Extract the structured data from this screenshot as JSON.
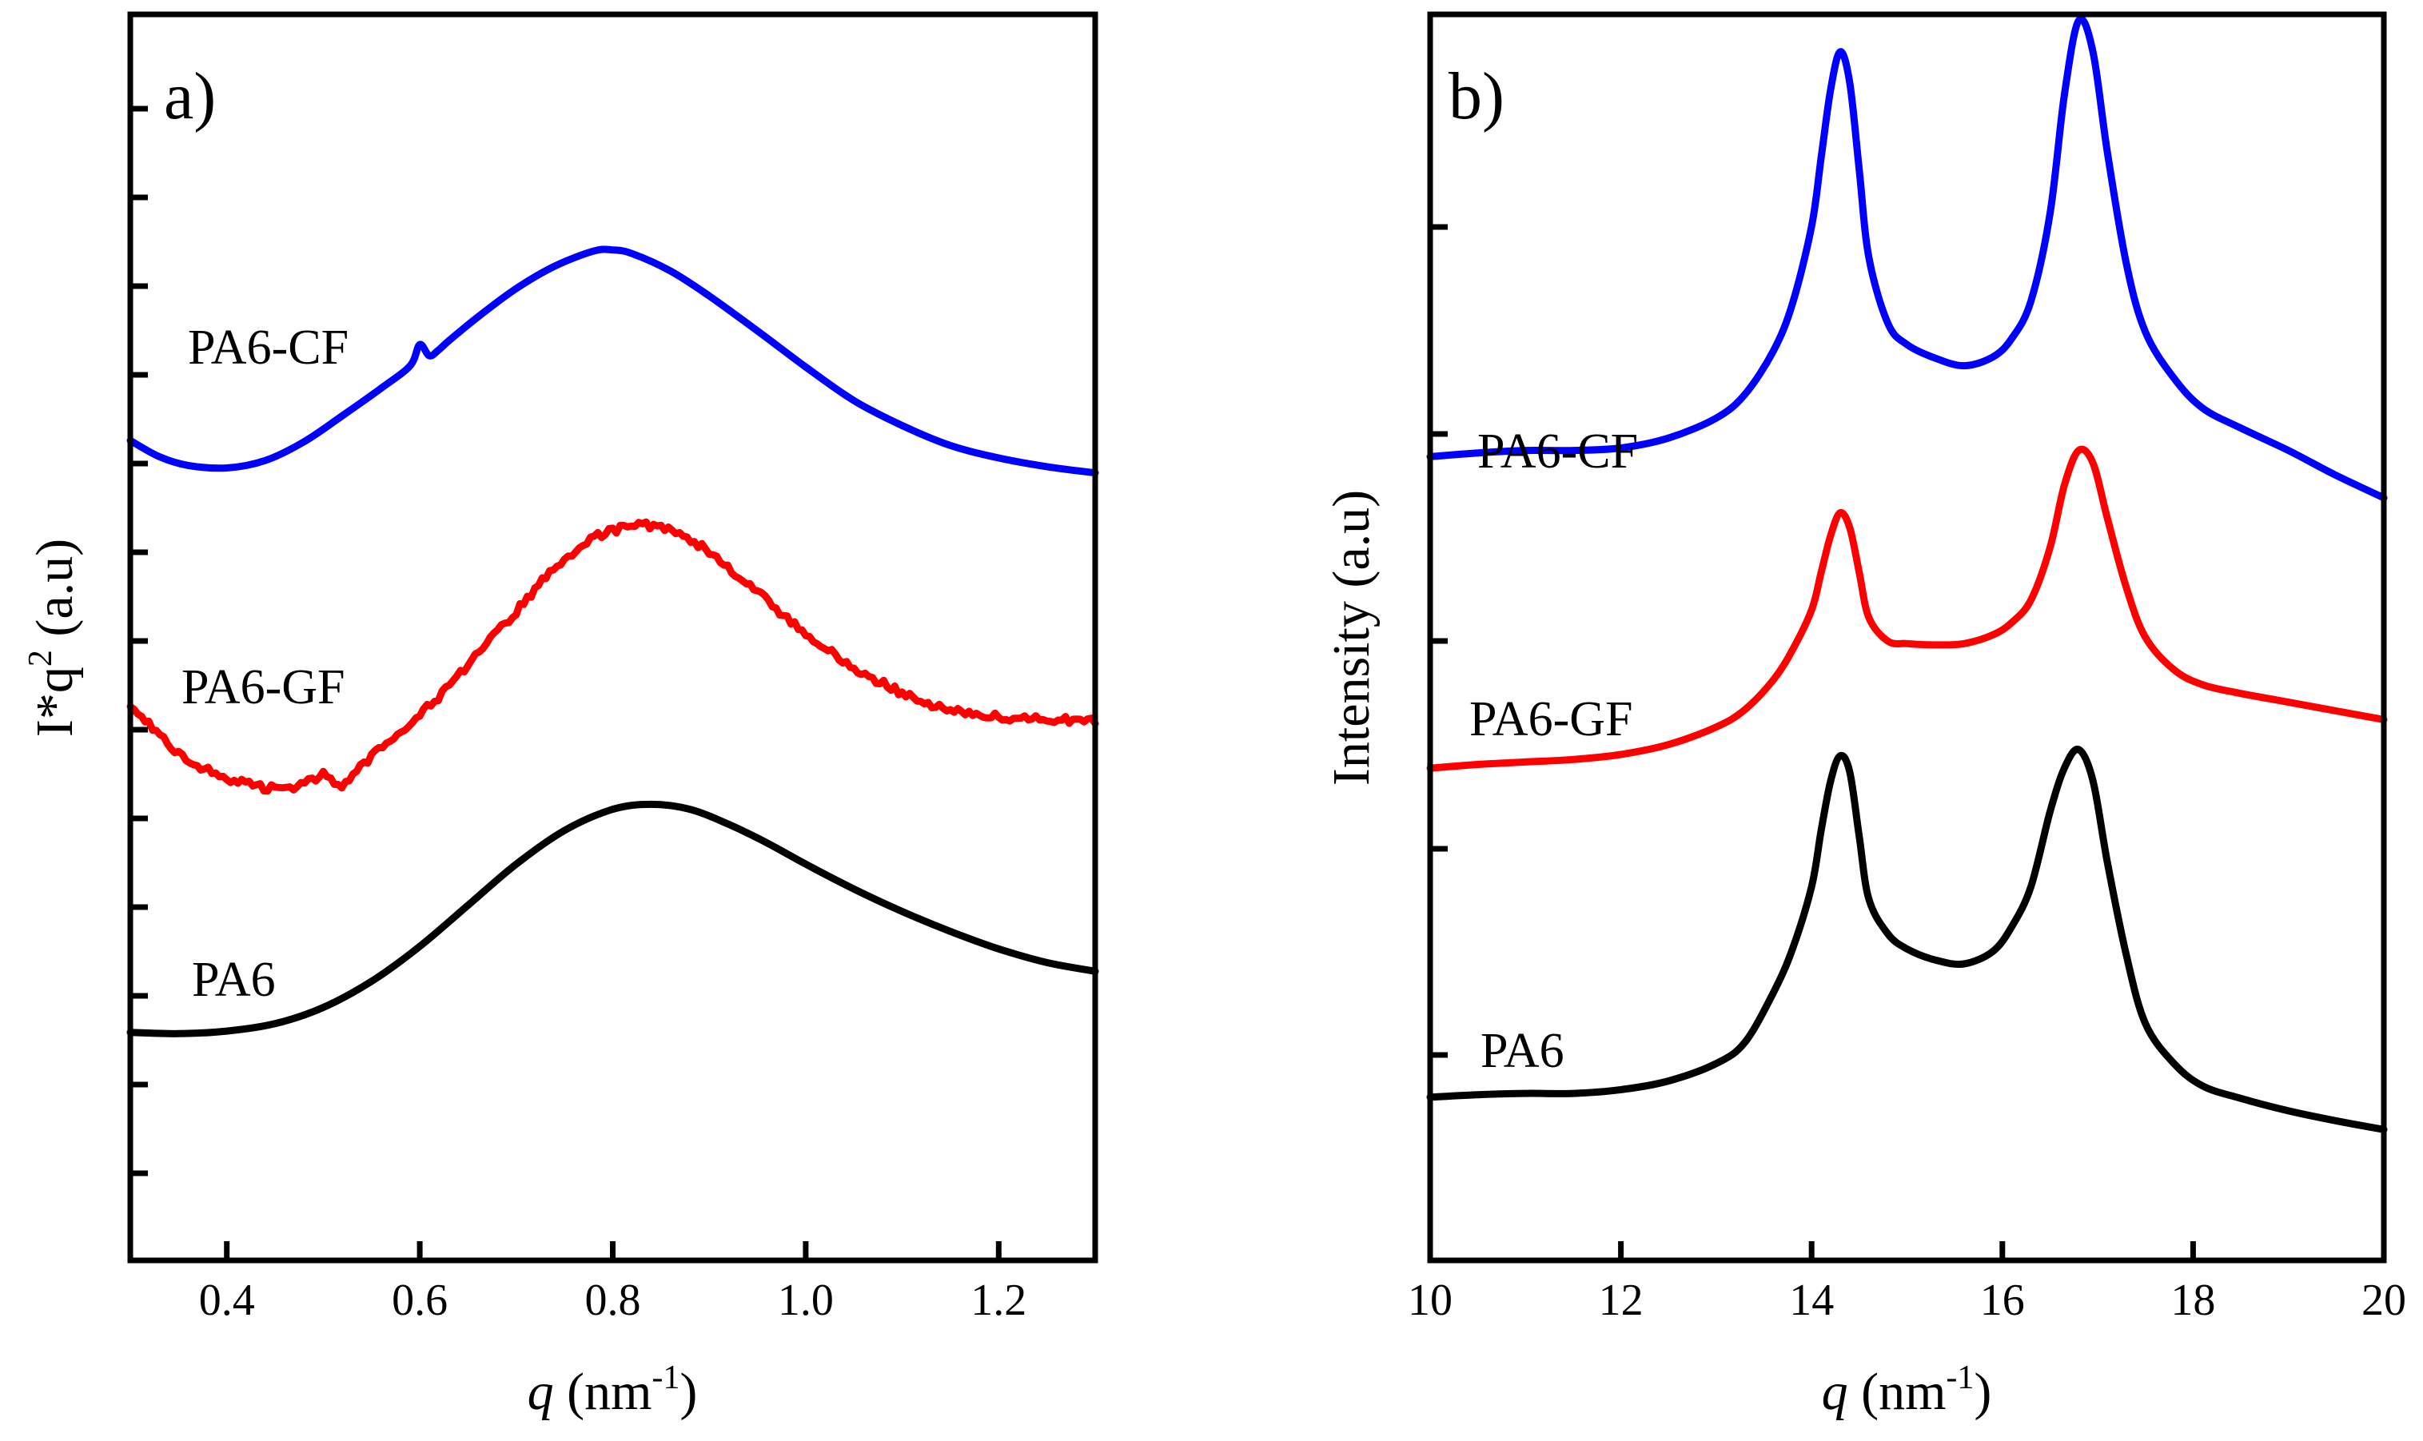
{
  "chart_data": [
    {
      "type": "line",
      "panel_label": "a)",
      "xlabel_var": "q",
      "xlabel_unit": " (nm",
      "xlabel_exp": "-1",
      "xlabel_close": ")",
      "ylabel_main": "I*q",
      "ylabel_exp": "2",
      "ylabel_unit": " (a.u)",
      "xlim": [
        0.3,
        1.3
      ],
      "ylim": [
        0,
        1
      ],
      "x_ticks": [
        0.4,
        0.6,
        0.8,
        1.0,
        1.2
      ],
      "x_tick_labels": [
        "0.4",
        "0.6",
        "0.8",
        "1.0",
        "1.2"
      ],
      "y_tick_labels_shown": false,
      "series": [
        {
          "name": "PA6-CF",
          "color": "#0000ff",
          "noisy": false,
          "x": [
            0.3,
            0.33,
            0.36,
            0.4,
            0.44,
            0.48,
            0.52,
            0.56,
            0.59,
            0.6,
            0.61,
            0.62,
            0.63,
            0.66,
            0.7,
            0.74,
            0.78,
            0.8,
            0.82,
            0.86,
            0.9,
            0.95,
            1.0,
            1.05,
            1.1,
            1.15,
            1.2,
            1.25,
            1.3
          ],
          "y": [
            0.658,
            0.645,
            0.638,
            0.636,
            0.642,
            0.657,
            0.678,
            0.7,
            0.718,
            0.735,
            0.726,
            0.731,
            0.738,
            0.757,
            0.78,
            0.798,
            0.81,
            0.811,
            0.808,
            0.794,
            0.774,
            0.746,
            0.717,
            0.69,
            0.67,
            0.654,
            0.644,
            0.637,
            0.632
          ]
        },
        {
          "name": "PA6-GF",
          "color": "#ff0000",
          "noisy": true,
          "x": [
            0.3,
            0.33,
            0.36,
            0.4,
            0.44,
            0.47,
            0.5,
            0.52,
            0.53,
            0.55,
            0.58,
            0.62,
            0.66,
            0.7,
            0.74,
            0.78,
            0.82,
            0.86,
            0.9,
            0.95,
            1.0,
            1.05,
            1.1,
            1.15,
            1.2,
            1.25,
            1.3
          ],
          "y": [
            0.447,
            0.422,
            0.4,
            0.387,
            0.379,
            0.38,
            0.39,
            0.38,
            0.388,
            0.405,
            0.425,
            0.452,
            0.486,
            0.521,
            0.557,
            0.58,
            0.591,
            0.588,
            0.569,
            0.536,
            0.502,
            0.475,
            0.455,
            0.441,
            0.436,
            0.434,
            0.433
          ]
        },
        {
          "name": "PA6",
          "color": "#000000",
          "noisy": false,
          "x": [
            0.3,
            0.35,
            0.4,
            0.45,
            0.5,
            0.55,
            0.6,
            0.65,
            0.7,
            0.75,
            0.8,
            0.84,
            0.88,
            0.92,
            0.96,
            1.0,
            1.05,
            1.1,
            1.15,
            1.2,
            1.25,
            1.3
          ],
          "y": [
            0.183,
            0.182,
            0.184,
            0.19,
            0.203,
            0.224,
            0.252,
            0.285,
            0.318,
            0.345,
            0.362,
            0.366,
            0.362,
            0.35,
            0.335,
            0.318,
            0.298,
            0.28,
            0.264,
            0.25,
            0.239,
            0.232
          ]
        }
      ]
    },
    {
      "type": "line",
      "panel_label": "b)",
      "xlabel_var": "q",
      "xlabel_unit": " (nm",
      "xlabel_exp": "-1",
      "xlabel_close": ")",
      "ylabel": "Intensity (a.u)",
      "xlim": [
        10,
        20
      ],
      "ylim": [
        0,
        1
      ],
      "x_ticks": [
        10,
        12,
        14,
        16,
        18,
        20
      ],
      "x_tick_labels": [
        "10",
        "12",
        "14",
        "16",
        "18",
        "20"
      ],
      "y_tick_labels_shown": false,
      "series": [
        {
          "name": "PA6-CF",
          "color": "#0000ff",
          "x": [
            10.0,
            10.5,
            11.0,
            11.5,
            12.0,
            12.5,
            13.0,
            13.3,
            13.6,
            13.8,
            14.0,
            14.1,
            14.2,
            14.3,
            14.4,
            14.5,
            14.6,
            14.8,
            15.0,
            15.3,
            15.6,
            15.9,
            16.1,
            16.3,
            16.5,
            16.65,
            16.8,
            16.95,
            17.1,
            17.3,
            17.5,
            17.8,
            18.1,
            18.5,
            19.0,
            19.5,
            20.0
          ],
          "y": [
            0.645,
            0.648,
            0.65,
            0.65,
            0.652,
            0.66,
            0.676,
            0.695,
            0.73,
            0.768,
            0.83,
            0.885,
            0.94,
            0.97,
            0.945,
            0.875,
            0.805,
            0.752,
            0.735,
            0.724,
            0.718,
            0.725,
            0.74,
            0.77,
            0.84,
            0.935,
            0.995,
            0.97,
            0.89,
            0.8,
            0.745,
            0.708,
            0.684,
            0.668,
            0.65,
            0.63,
            0.612
          ]
        },
        {
          "name": "PA6-GF",
          "color": "#ff0000",
          "x": [
            10.0,
            10.5,
            11.0,
            11.5,
            12.0,
            12.5,
            13.0,
            13.3,
            13.6,
            13.8,
            14.0,
            14.1,
            14.2,
            14.3,
            14.4,
            14.5,
            14.6,
            14.8,
            15.0,
            15.3,
            15.6,
            15.9,
            16.1,
            16.3,
            16.5,
            16.65,
            16.8,
            16.95,
            17.1,
            17.3,
            17.5,
            17.8,
            18.1,
            18.5,
            19.0,
            19.5,
            20.0
          ],
          "y": [
            0.395,
            0.398,
            0.4,
            0.402,
            0.406,
            0.414,
            0.428,
            0.442,
            0.466,
            0.49,
            0.522,
            0.552,
            0.582,
            0.6,
            0.588,
            0.552,
            0.516,
            0.497,
            0.495,
            0.494,
            0.495,
            0.502,
            0.512,
            0.53,
            0.572,
            0.622,
            0.65,
            0.64,
            0.596,
            0.54,
            0.5,
            0.474,
            0.462,
            0.455,
            0.448,
            0.441,
            0.434
          ]
        },
        {
          "name": "PA6",
          "color": "#000000",
          "x": [
            10.0,
            10.5,
            11.0,
            11.5,
            12.0,
            12.5,
            13.0,
            13.3,
            13.6,
            13.8,
            14.0,
            14.1,
            14.2,
            14.3,
            14.4,
            14.5,
            14.6,
            14.8,
            15.0,
            15.3,
            15.6,
            15.9,
            16.1,
            16.3,
            16.5,
            16.65,
            16.8,
            16.95,
            17.1,
            17.3,
            17.5,
            17.8,
            18.1,
            18.5,
            19.0,
            19.5,
            20.0
          ],
          "y": [
            0.131,
            0.133,
            0.134,
            0.134,
            0.137,
            0.144,
            0.158,
            0.175,
            0.215,
            0.25,
            0.3,
            0.345,
            0.385,
            0.405,
            0.392,
            0.34,
            0.29,
            0.262,
            0.25,
            0.241,
            0.238,
            0.248,
            0.268,
            0.3,
            0.36,
            0.395,
            0.41,
            0.385,
            0.32,
            0.245,
            0.19,
            0.158,
            0.14,
            0.13,
            0.12,
            0.112,
            0.105
          ]
        }
      ]
    }
  ]
}
